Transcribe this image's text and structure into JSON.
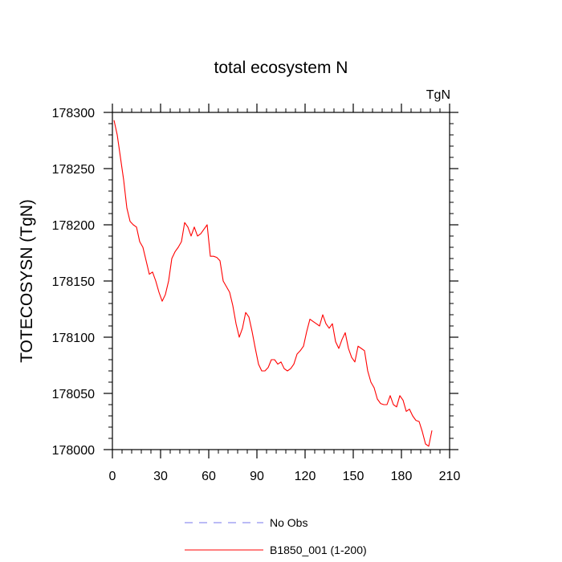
{
  "chart_data": {
    "type": "line",
    "title": "total ecosystem N",
    "units_label": "TgN",
    "ylabel": "TOTECOSYSN  (TgN)",
    "xlabel": "",
    "xlim": [
      0,
      210
    ],
    "ylim": [
      178000,
      178300
    ],
    "x_ticks": [
      0,
      30,
      60,
      90,
      120,
      150,
      180,
      210
    ],
    "y_ticks": [
      178000,
      178050,
      178100,
      178150,
      178200,
      178250,
      178300
    ],
    "grid": false,
    "legend_position": "bottom",
    "series": [
      {
        "name": "B1850_001 (1-200)",
        "color": "#ff0000",
        "dash": "solid",
        "x": [
          1,
          3,
          5,
          7,
          9,
          11,
          13,
          15,
          17,
          19,
          21,
          23,
          25,
          27,
          29,
          31,
          33,
          35,
          37,
          39,
          41,
          43,
          45,
          47,
          49,
          51,
          53,
          55,
          57,
          59,
          61,
          63,
          65,
          67,
          69,
          71,
          73,
          75,
          77,
          79,
          81,
          83,
          85,
          87,
          89,
          91,
          93,
          95,
          97,
          99,
          101,
          103,
          105,
          107,
          109,
          111,
          113,
          115,
          117,
          119,
          121,
          123,
          125,
          127,
          129,
          131,
          133,
          135,
          137,
          139,
          141,
          143,
          145,
          147,
          149,
          151,
          153,
          155,
          157,
          159,
          161,
          163,
          165,
          167,
          169,
          171,
          173,
          175,
          177,
          179,
          181,
          183,
          185,
          187,
          189,
          191,
          193,
          195,
          197,
          199
        ],
        "y": [
          178293,
          178280,
          178260,
          178240,
          178215,
          178203,
          178200,
          178198,
          178185,
          178180,
          178168,
          178156,
          178158,
          178150,
          178140,
          178132,
          178138,
          178150,
          178170,
          178176,
          178180,
          178185,
          178202,
          178198,
          178190,
          178198,
          178190,
          178192,
          178196,
          178200,
          178172,
          178172,
          178171,
          178168,
          178150,
          178145,
          178140,
          178128,
          178112,
          178100,
          178108,
          178122,
          178118,
          178105,
          178090,
          178076,
          178070,
          178070,
          178073,
          178080,
          178080,
          178076,
          178078,
          178072,
          178070,
          178072,
          178076,
          178085,
          178088,
          178092,
          178105,
          178116,
          178114,
          178112,
          178110,
          178120,
          178112,
          178108,
          178112,
          178096,
          178090,
          178098,
          178104,
          178090,
          178082,
          178078,
          178092,
          178090,
          178088,
          178070,
          178060,
          178055,
          178045,
          178041,
          178040,
          178040,
          178048,
          178040,
          178038,
          178048,
          178044,
          178034,
          178036,
          178030,
          178026,
          178025,
          178016,
          178005,
          178003,
          178017
        ]
      },
      {
        "name": "No Obs",
        "color": "#7777ee",
        "dash": "dashed",
        "x": [],
        "y": []
      }
    ]
  }
}
